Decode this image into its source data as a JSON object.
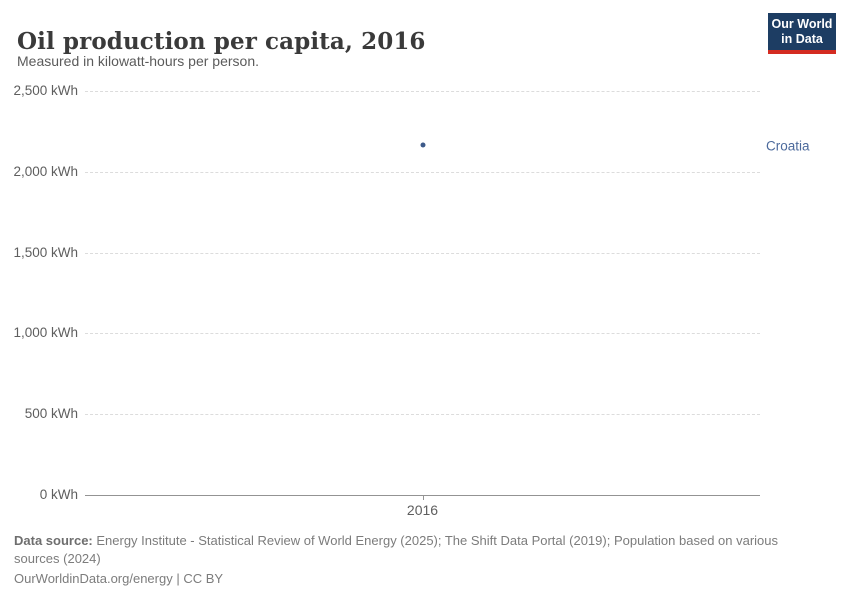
{
  "header": {
    "title": "Oil production per capita, 2016",
    "subtitle": "Measured in kilowatt-hours per person."
  },
  "logo": {
    "line1": "Our World",
    "line2": "in Data",
    "bg_color": "#1d3d63",
    "bar_color": "#d42b21"
  },
  "chart_data": {
    "type": "scatter",
    "title": "Oil production per capita, 2016",
    "subtitle": "Measured in kilowatt-hours per person.",
    "unit": "kWh",
    "grid": true,
    "ylim": [
      0,
      2500
    ],
    "y_ticks": [
      {
        "value": 0,
        "label": "0 kWh"
      },
      {
        "value": 500,
        "label": "500 kWh"
      },
      {
        "value": 1000,
        "label": "1,000 kWh"
      },
      {
        "value": 1500,
        "label": "1,500 kWh"
      },
      {
        "value": 2000,
        "label": "2,000 kWh"
      },
      {
        "value": 2500,
        "label": "2,500 kWh"
      }
    ],
    "x_ticks": [
      {
        "value": 2016,
        "label": "2016"
      }
    ],
    "series": [
      {
        "name": "Croatia",
        "color": "#3d5a8a",
        "label_color": "#4c6a9c",
        "points": [
          {
            "x": 2016,
            "y": 2166
          }
        ]
      }
    ],
    "legend_position": "entity-label-right"
  },
  "footer": {
    "source_label": "Data source:",
    "source_text": " Energy Institute - Statistical Review of World Energy (2025); The Shift Data Portal (2019); Population based on various sources (2024)",
    "credit": "OurWorldinData.org/energy | CC BY"
  }
}
